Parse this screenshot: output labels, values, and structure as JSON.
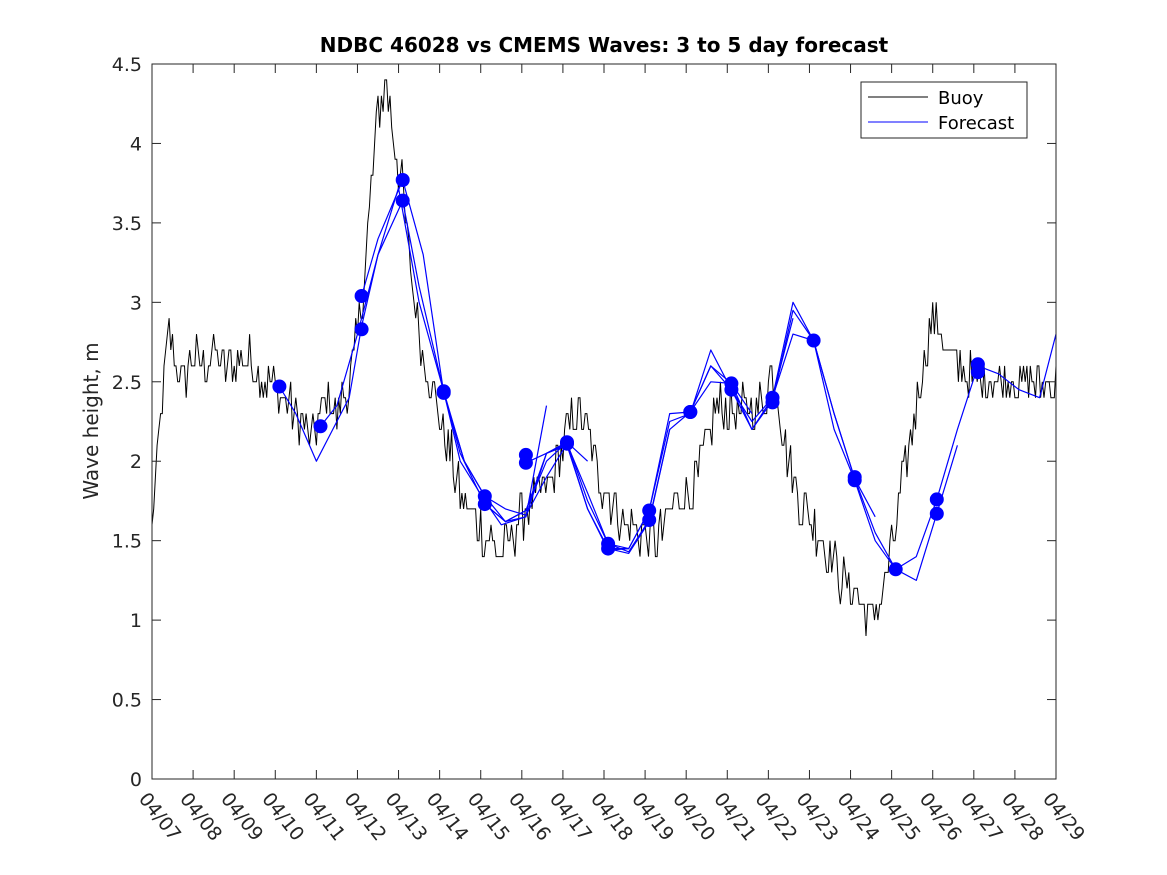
{
  "chart_data": {
    "type": "line",
    "title": "NDBC 46028 vs CMEMS Waves: 3 to 5 day forecast",
    "xlabel": "",
    "ylabel": "Wave height, m",
    "xlim": [
      "04/07",
      "04/29"
    ],
    "ylim": [
      0,
      4.5
    ],
    "x_ticks": [
      "04/07",
      "04/08",
      "04/09",
      "04/10",
      "04/11",
      "04/12",
      "04/13",
      "04/14",
      "04/15",
      "04/16",
      "04/17",
      "04/18",
      "04/19",
      "04/20",
      "04/21",
      "04/22",
      "04/23",
      "04/24",
      "04/25",
      "04/26",
      "04/27",
      "04/28",
      "04/29"
    ],
    "y_ticks": [
      "0",
      "0.5",
      "1",
      "1.5",
      "2",
      "2.5",
      "3",
      "3.5",
      "4",
      "4.5"
    ],
    "grid": false,
    "legend_position": "top-right",
    "colors": {
      "buoy": "#000000",
      "forecast": "#0000ff",
      "axes": "#262626"
    },
    "series": [
      {
        "name": "Buoy",
        "style": "line",
        "x_unit": "days since 04/07 00:00",
        "x": [
          0,
          0.1,
          0.2,
          0.3,
          0.4,
          0.5,
          0.6,
          0.8,
          1.0,
          1.2,
          1.5,
          1.8,
          2.0,
          2.2,
          2.5,
          2.7,
          3.0,
          3.2,
          3.5,
          3.7,
          3.9,
          4.1,
          4.3,
          4.5,
          4.7,
          4.9,
          5.1,
          5.3,
          5.5,
          5.7,
          5.9,
          6.1,
          6.2,
          6.3,
          6.5,
          6.7,
          6.9,
          7.1,
          7.3,
          7.5,
          7.7,
          7.9,
          8.1,
          8.3,
          8.5,
          8.7,
          8.9,
          9.1,
          9.3,
          9.5,
          9.7,
          9.9,
          10.1,
          10.3,
          10.5,
          10.7,
          10.9,
          11.1,
          11.3,
          11.5,
          11.7,
          11.9,
          12.1,
          12.3,
          12.5,
          12.7,
          12.9,
          13.1,
          13.3,
          13.5,
          13.7,
          13.9,
          14.1,
          14.3,
          14.5,
          14.7,
          14.9,
          15.1,
          15.3,
          15.5,
          15.7,
          15.9,
          16.1,
          16.3,
          16.5,
          16.7,
          16.9,
          17.1,
          17.3,
          17.5,
          17.7,
          17.9,
          18.1,
          18.3,
          18.5,
          18.7,
          18.9,
          19.1,
          19.3,
          19.5,
          19.7,
          19.9,
          20.1,
          20.3,
          20.5,
          20.7,
          20.9,
          21.1,
          21.3,
          21.5,
          21.7,
          21.9,
          22.0
        ],
        "y": [
          1.6,
          1.9,
          2.2,
          2.5,
          2.8,
          2.7,
          2.6,
          2.5,
          2.7,
          2.6,
          2.7,
          2.6,
          2.6,
          2.65,
          2.6,
          2.5,
          2.45,
          2.4,
          2.3,
          2.2,
          2.1,
          2.3,
          2.4,
          2.3,
          2.4,
          2.6,
          3.0,
          3.6,
          4.2,
          4.4,
          4.0,
          3.7,
          3.4,
          3.2,
          2.8,
          2.6,
          2.4,
          2.2,
          2.0,
          1.8,
          1.7,
          1.6,
          1.55,
          1.5,
          1.4,
          1.5,
          1.6,
          1.7,
          1.75,
          1.8,
          1.9,
          2.0,
          2.2,
          2.3,
          2.25,
          2.1,
          1.9,
          1.8,
          1.7,
          1.6,
          1.6,
          1.55,
          1.5,
          1.5,
          1.6,
          1.75,
          1.8,
          1.8,
          1.9,
          2.1,
          2.3,
          2.35,
          2.3,
          2.3,
          2.35,
          2.3,
          2.4,
          2.6,
          2.3,
          2.0,
          1.8,
          1.7,
          1.6,
          1.5,
          1.4,
          1.3,
          1.2,
          1.2,
          1.1,
          1.0,
          1.1,
          1.3,
          1.6,
          1.9,
          2.2,
          2.5,
          2.8,
          2.9,
          2.7,
          2.6,
          2.6,
          2.55,
          2.5,
          2.5,
          2.5,
          2.5,
          2.5,
          2.5,
          2.5,
          2.5,
          2.5,
          2.5,
          2.5
        ],
        "noise": 0.15
      },
      {
        "name": "Forecast",
        "style": "lines",
        "x_unit": "days since 04/07 00:00",
        "runs": [
          {
            "x": [
              3.1,
              3.5,
              4.0,
              4.4,
              4.8,
              5.1,
              5.5,
              6.0,
              6.5,
              7.1,
              7.5,
              8.1,
              8.5,
              9.1,
              9.6
            ],
            "y": [
              2.47,
              2.3,
              2.0,
              2.2,
              2.4,
              2.85,
              3.3,
              3.72,
              3.0,
              2.44,
              2.0,
              1.75,
              1.6,
              1.65,
              2.35
            ]
          },
          {
            "x": [
              4.1,
              4.5,
              5.0,
              5.5,
              6.1,
              6.5,
              7.1,
              7.5,
              8.1,
              8.6,
              9.1,
              9.6,
              10.1,
              10.6
            ],
            "y": [
              2.22,
              2.35,
              2.8,
              3.3,
              3.64,
              3.1,
              2.44,
              2.05,
              1.73,
              1.62,
              1.69,
              2.0,
              2.12,
              2.0
            ]
          },
          {
            "x": [
              5.1,
              5.5,
              6.1,
              6.6,
              7.1,
              7.6,
              8.1,
              8.6,
              9.1,
              9.6,
              10.1,
              10.6,
              11.1,
              11.6
            ],
            "y": [
              3.04,
              3.4,
              3.77,
              3.3,
              2.43,
              2.0,
              1.78,
              1.7,
              1.66,
              1.9,
              2.11,
              1.8,
              1.48,
              1.45
            ]
          },
          {
            "x": [
              7.1,
              7.6,
              8.1,
              8.6,
              9.1,
              9.6,
              10.1,
              10.6,
              11.1,
              11.6,
              12.1,
              12.6
            ],
            "y": [
              2.44,
              2.0,
              1.78,
              1.62,
              1.65,
              2.05,
              2.1,
              1.7,
              1.45,
              1.42,
              1.62,
              2.2
            ]
          },
          {
            "x": [
              8.1,
              8.6,
              9.1,
              9.6,
              10.1,
              10.6,
              11.1,
              11.6,
              12.1,
              12.6,
              13.1,
              13.6,
              14.1,
              14.6
            ],
            "y": [
              1.73,
              1.62,
              1.69,
              2.05,
              2.11,
              1.7,
              1.44,
              1.45,
              1.69,
              2.3,
              2.31,
              2.5,
              2.49,
              2.3
            ]
          },
          {
            "x": [
              9.1,
              9.6,
              10.1,
              10.6,
              11.1,
              11.6,
              12.1,
              12.6,
              13.1,
              13.6,
              14.1,
              14.6,
              15.1,
              15.6
            ],
            "y": [
              1.99,
              2.05,
              2.12,
              1.75,
              1.48,
              1.43,
              1.63,
              2.2,
              2.31,
              2.6,
              2.45,
              2.25,
              2.4,
              2.9
            ]
          },
          {
            "x": [
              11.1,
              11.6,
              12.1,
              12.6,
              13.1,
              13.6,
              14.1,
              14.6,
              15.1,
              15.6,
              16.1,
              16.6,
              17.1,
              17.6
            ],
            "y": [
              1.45,
              1.45,
              1.69,
              2.25,
              2.3,
              2.7,
              2.45,
              2.2,
              2.38,
              2.95,
              2.76,
              2.3,
              1.89,
              1.65
            ]
          },
          {
            "x": [
              13.1,
              13.6,
              14.1,
              14.6,
              15.1,
              15.6,
              16.1,
              16.6,
              17.1,
              17.6,
              18.1,
              18.6,
              19.1,
              19.6
            ],
            "y": [
              2.31,
              2.6,
              2.49,
              2.2,
              2.4,
              2.8,
              2.76,
              2.2,
              1.88,
              1.5,
              1.32,
              1.25,
              1.67,
              2.1
            ]
          },
          {
            "x": [
              15.1,
              15.6,
              16.1,
              16.6,
              17.1,
              17.6,
              18.1,
              18.6,
              19.1,
              19.6,
              20.1,
              20.6,
              21.1,
              21.6,
              22.0
            ],
            "y": [
              2.4,
              3.0,
              2.76,
              2.3,
              1.89,
              1.55,
              1.32,
              1.4,
              1.76,
              2.2,
              2.6,
              2.55,
              2.45,
              2.4,
              2.8
            ]
          }
        ],
        "markers": {
          "x": [
            3.1,
            4.1,
            5.1,
            5.1,
            6.1,
            6.1,
            7.1,
            7.1,
            8.1,
            8.1,
            9.1,
            9.1,
            10.1,
            10.1,
            11.1,
            11.1,
            12.1,
            12.1,
            13.1,
            13.1,
            14.1,
            14.1,
            15.1,
            15.1,
            16.1,
            17.1,
            17.1,
            18.1,
            19.1,
            19.1,
            20.1,
            20.1
          ],
          "y": [
            2.47,
            2.22,
            3.04,
            2.83,
            3.77,
            3.64,
            2.44,
            2.43,
            1.78,
            1.73,
            2.04,
            1.99,
            2.12,
            2.11,
            1.48,
            1.45,
            1.69,
            1.63,
            2.31,
            2.31,
            2.49,
            2.45,
            2.4,
            2.37,
            2.76,
            1.9,
            1.88,
            1.32,
            1.76,
            1.67,
            2.61,
            2.56
          ]
        }
      }
    ]
  }
}
